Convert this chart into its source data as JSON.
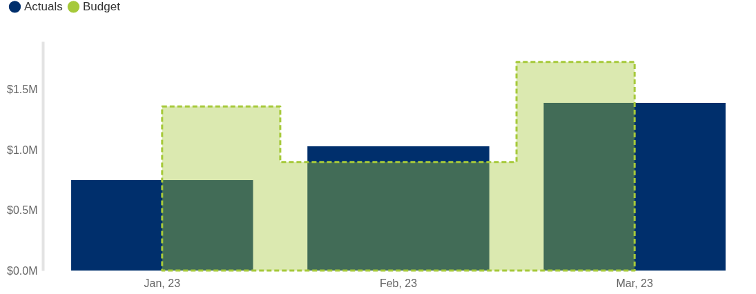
{
  "chart_data": {
    "type": "bar",
    "categories": [
      "Jan, 23",
      "Feb, 23",
      "Mar, 23"
    ],
    "series": [
      {
        "name": "Actuals",
        "color": "#002f6c",
        "values": [
          0.75,
          1.03,
          1.39
        ]
      },
      {
        "name": "Budget",
        "color": "#a6c93a",
        "type": "area",
        "line_style": "dashed",
        "values": [
          1.36,
          0.9,
          1.73
        ]
      }
    ],
    "ylim": [
      0,
      1.9
    ],
    "yticks": [
      {
        "value": 0,
        "label": "$0.0M"
      },
      {
        "value": 0.5,
        "label": "$0.5M"
      },
      {
        "value": 1,
        "label": "$1.0M"
      },
      {
        "value": 1.5,
        "label": "$1.5M"
      }
    ],
    "grid": false,
    "legend": "top left"
  }
}
